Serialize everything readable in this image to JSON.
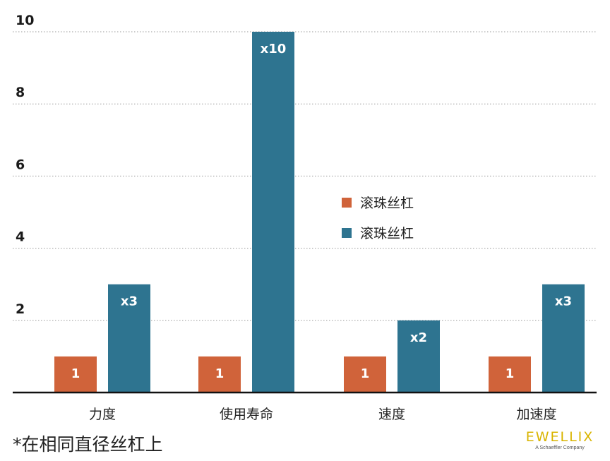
{
  "chart_data": {
    "type": "bar",
    "categories": [
      "力度",
      "使用寿命",
      "速度",
      "加速度"
    ],
    "series": [
      {
        "name": "滚珠丝杠",
        "values": [
          1,
          1,
          1,
          1
        ],
        "labels": [
          "1",
          "1",
          "1",
          "1"
        ],
        "color": "#d0633a"
      },
      {
        "name": "滚珠丝杠",
        "values": [
          3,
          10,
          2,
          3
        ],
        "labels": [
          "x3",
          "x10",
          "x2",
          "x3"
        ],
        "color": "#2e7490"
      }
    ],
    "ylim": [
      0,
      10
    ],
    "yticks": [
      2,
      4,
      6,
      8,
      10
    ],
    "grid": true,
    "grid_style": "dotted",
    "legend_position": "right-middle",
    "title": "",
    "xlabel": "",
    "ylabel": ""
  },
  "footnote": "*在相同直径丝杠上",
  "brand": {
    "name": "EWELLIX",
    "subtitle": "A Schaeffler Company",
    "color": "#d9b400"
  }
}
